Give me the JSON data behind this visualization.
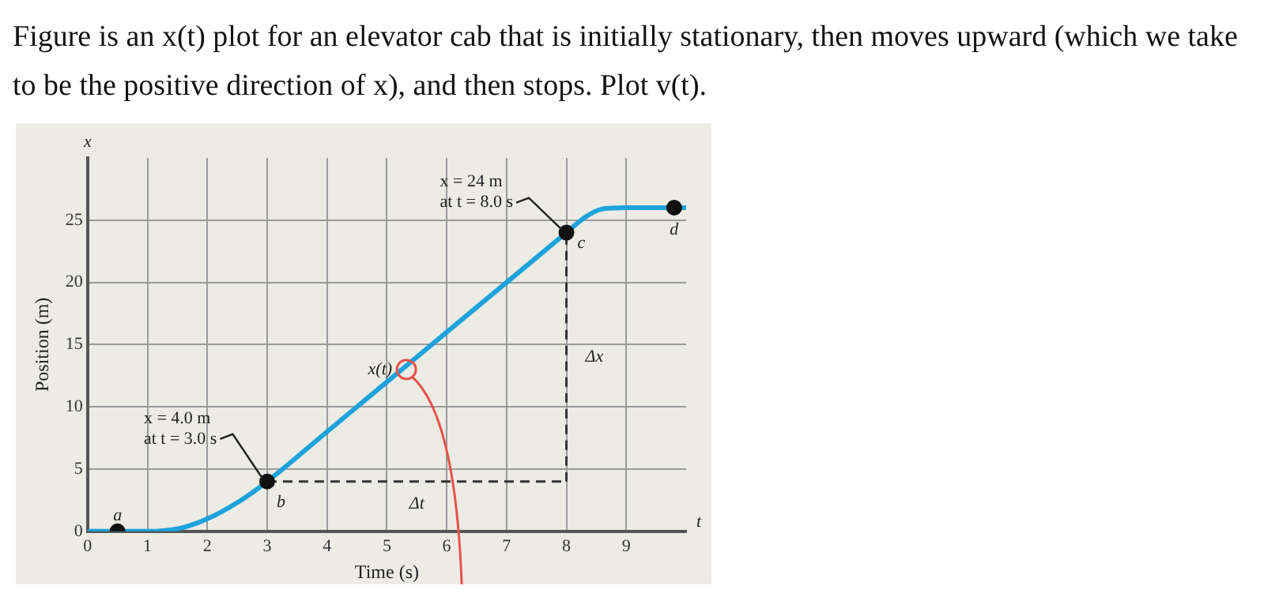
{
  "chart_data": {
    "type": "line",
    "title": "Figure is an x(t) plot for an elevator cab that is initially stationary, then moves upward (which we take to be the positive direction of x), and then stops. Plot v(t).",
    "xlabel": "Time (s)",
    "ylabel": "Position (m)",
    "xlim": [
      0,
      10
    ],
    "ylim": [
      0,
      30
    ],
    "xticks": [
      0,
      1,
      2,
      3,
      4,
      5,
      6,
      7,
      8,
      9
    ],
    "yticks": [
      0,
      5,
      10,
      15,
      20,
      25
    ],
    "grid": true,
    "series": [
      {
        "color": "#1ca3dc",
        "x": [
          0,
          1,
          1.5,
          2,
          2.5,
          3,
          4,
          5,
          6,
          7,
          8,
          8.3,
          8.6,
          9,
          10
        ],
        "values": [
          0,
          0,
          0.2,
          1,
          2.3,
          4,
          8,
          12,
          16,
          20,
          24,
          25.2,
          25.9,
          26,
          26
        ],
        "marker": "none",
        "line_style": "solid"
      },
      {
        "color": "#333333",
        "x": [
          3,
          8
        ],
        "values": [
          4,
          4
        ],
        "marker": "none",
        "line_style": "dashed"
      },
      {
        "color": "#333333",
        "x": [
          8,
          8
        ],
        "values": [
          4,
          24
        ],
        "marker": "none",
        "line_style": "dashed"
      },
      {
        "type": "scatter",
        "color": "#111111",
        "x": [
          0.5,
          3,
          8,
          9.8
        ],
        "values": [
          0,
          4,
          24,
          26
        ],
        "marker": "circle"
      }
    ],
    "annotations": [
      {
        "text": "a",
        "x": 0.5,
        "y": 0
      },
      {
        "text": "b",
        "x": 3,
        "y": 4
      },
      {
        "text": "c",
        "x": 8,
        "y": 24
      },
      {
        "text": "d",
        "x": 9.8,
        "y": 26
      },
      {
        "text": "x = 4.0 m\nat t = 3.0 s",
        "x": 3,
        "y": 4
      },
      {
        "text": "x = 24 m\nat t = 8.0 s",
        "x": 8,
        "y": 24
      },
      {
        "text": "x(t)",
        "x": 5.3,
        "y": 13
      },
      {
        "text": "Δt",
        "x": 5.5,
        "y": 4
      },
      {
        "text": "Δx",
        "x": 8,
        "y": 14
      },
      "x",
      "t"
    ]
  }
}
